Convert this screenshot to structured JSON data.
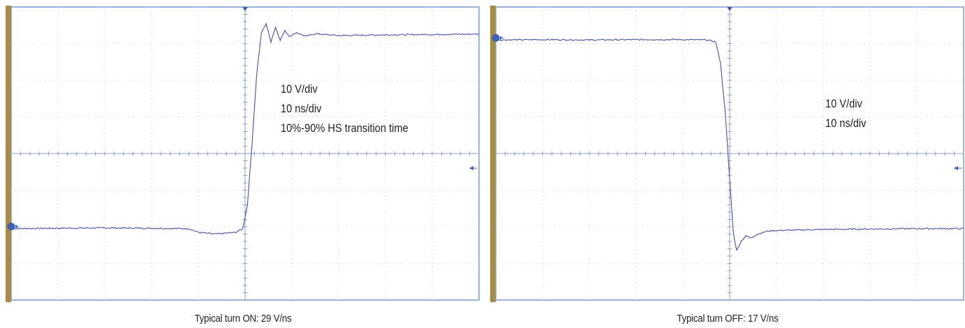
{
  "colors": {
    "frame_bar": "#a98b48",
    "frame_border": "#7b9bc8",
    "grid": "#bcc8dc",
    "trace": "#4a4fa8",
    "marker": "#3d62b4",
    "text": "#231f20"
  },
  "chart_data": [
    {
      "type": "line",
      "caption": "Typical turn ON: 29  V/ns",
      "annotations": [
        "10 V/div",
        "10 ns/div",
        "10%-90% HS transition time"
      ],
      "grid": true,
      "xlim": [
        0,
        10
      ],
      "ylim": [
        0,
        8
      ],
      "x_units": "divisions",
      "y_units": "divisions",
      "series": [
        {
          "values": [
            [
              0,
              1.95
            ],
            [
              1,
              1.96
            ],
            [
              2,
              1.97
            ],
            [
              3,
              1.96
            ],
            [
              3.8,
              1.95
            ],
            [
              4.0,
              1.85
            ],
            [
              4.35,
              1.8
            ],
            [
              4.8,
              1.85
            ],
            [
              4.95,
              1.95
            ],
            [
              5.05,
              2.6
            ],
            [
              5.15,
              4.3
            ],
            [
              5.25,
              6.2
            ],
            [
              5.35,
              7.3
            ],
            [
              5.45,
              7.55
            ],
            [
              5.55,
              7.05
            ],
            [
              5.65,
              7.45
            ],
            [
              5.75,
              7.1
            ],
            [
              5.85,
              7.35
            ],
            [
              5.95,
              7.2
            ],
            [
              6.1,
              7.3
            ],
            [
              6.3,
              7.2
            ],
            [
              6.5,
              7.27
            ],
            [
              7,
              7.22
            ],
            [
              8,
              7.24
            ],
            [
              9,
              7.25
            ],
            [
              10,
              7.26
            ]
          ]
        }
      ]
    },
    {
      "type": "line",
      "caption": "Typical turn OFF: 17 V/ns",
      "annotations": [
        "10 V/div",
        "10 ns/div"
      ],
      "grid": true,
      "xlim": [
        0,
        10
      ],
      "ylim": [
        0,
        8
      ],
      "x_units": "divisions",
      "y_units": "divisions",
      "series": [
        {
          "values": [
            [
              0,
              7.1
            ],
            [
              1,
              7.11
            ],
            [
              2,
              7.1
            ],
            [
              3,
              7.11
            ],
            [
              4,
              7.11
            ],
            [
              4.5,
              7.1
            ],
            [
              4.7,
              7.05
            ],
            [
              4.8,
              6.5
            ],
            [
              4.9,
              5.2
            ],
            [
              5.0,
              3.3
            ],
            [
              5.08,
              1.8
            ],
            [
              5.15,
              1.35
            ],
            [
              5.25,
              1.62
            ],
            [
              5.35,
              1.75
            ],
            [
              5.45,
              1.7
            ],
            [
              5.6,
              1.8
            ],
            [
              5.8,
              1.88
            ],
            [
              6.0,
              1.9
            ],
            [
              7,
              1.93
            ],
            [
              8,
              1.94
            ],
            [
              9,
              1.95
            ],
            [
              10,
              1.95
            ]
          ]
        }
      ]
    }
  ]
}
